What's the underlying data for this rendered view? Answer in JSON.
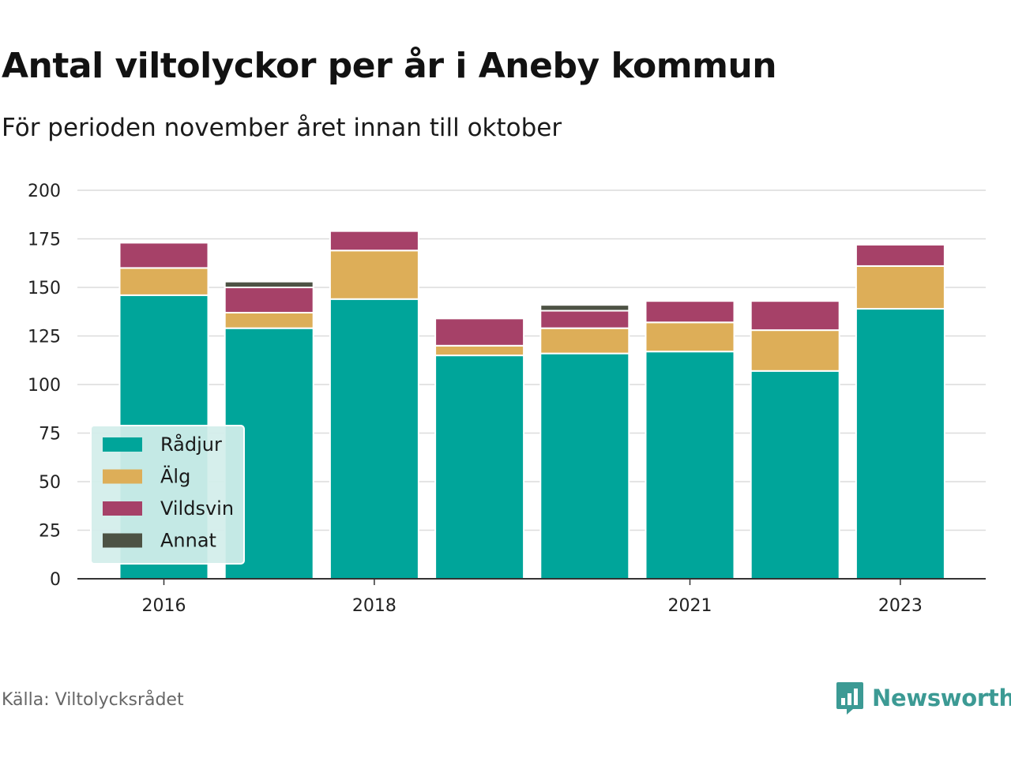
{
  "header": {
    "title": "Antal viltolyckor per år i Aneby kommun",
    "subtitle": "För perioden november året innan till oktober"
  },
  "footer": {
    "source": "Källa: Viltolycksrådet",
    "brand": "Newsworthy",
    "brand_icon": "bar-chart-speech-icon"
  },
  "colors": {
    "Rådjur": "#00a59a",
    "Älg": "#ddae58",
    "Vildsvin": "#a64168",
    "Annat": "#4d5244",
    "brand": "#3c9a94"
  },
  "chart_data": {
    "type": "bar",
    "stacked": true,
    "categories": [
      "2016",
      "2017",
      "2018",
      "2019",
      "2020",
      "2021",
      "2022",
      "2023"
    ],
    "x_tick_labels": [
      "2016",
      "",
      "2018",
      "",
      "",
      "2021",
      "",
      "2023"
    ],
    "series": [
      {
        "name": "Rådjur",
        "values": [
          146,
          129,
          144,
          115,
          116,
          117,
          107,
          139
        ]
      },
      {
        "name": "Älg",
        "values": [
          14,
          8,
          25,
          5,
          13,
          15,
          21,
          22
        ]
      },
      {
        "name": "Vildsvin",
        "values": [
          13,
          13,
          10,
          14,
          9,
          11,
          15,
          11
        ]
      },
      {
        "name": "Annat",
        "values": [
          0,
          3,
          0,
          0,
          3,
          0,
          0,
          0
        ]
      }
    ],
    "ylim": [
      0,
      200
    ],
    "yticks": [
      "0",
      "25",
      "50",
      "75",
      "100",
      "125",
      "150",
      "175",
      "200"
    ],
    "grid": true,
    "legend": {
      "placement": "bottom-left",
      "entries": [
        "Rådjur",
        "Älg",
        "Vildsvin",
        "Annat"
      ]
    }
  }
}
